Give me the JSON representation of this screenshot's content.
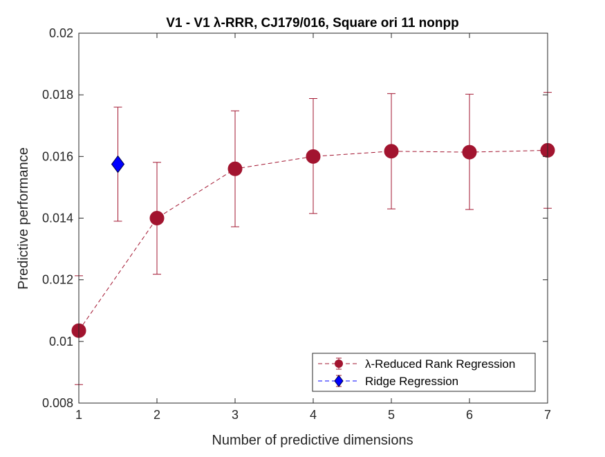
{
  "chart_data": {
    "type": "line",
    "title": "V1 - V1 λ-RRR, CJ179/016, Square ori 11 nonpp",
    "xlabel": "Number of predictive dimensions",
    "ylabel": "Predictive performance",
    "xlim": [
      1,
      7
    ],
    "ylim": [
      0.008,
      0.02
    ],
    "xticks": [
      1,
      2,
      3,
      4,
      5,
      6,
      7
    ],
    "xtick_labels": [
      "1",
      "2",
      "3",
      "4",
      "5",
      "6",
      "7"
    ],
    "yticks": [
      0.008,
      0.01,
      0.012,
      0.014,
      0.016,
      0.018,
      0.02
    ],
    "ytick_labels": [
      "0.008",
      "0.01",
      "0.012",
      "0.014",
      "0.016",
      "0.018",
      "0.02"
    ],
    "grid": false,
    "legend_position": "bottom-right",
    "series": [
      {
        "name": "λ-Reduced Rank Regression",
        "color": "#A2142F",
        "marker": "circle",
        "line_style": "dashed",
        "x": [
          1,
          2,
          3,
          4,
          5,
          6,
          7
        ],
        "y": [
          0.01035,
          0.014,
          0.0156,
          0.016,
          0.01617,
          0.01614,
          0.0162
        ],
        "err_lower": [
          0.0086,
          0.01218,
          0.01372,
          0.01415,
          0.0143,
          0.01428,
          0.01432
        ],
        "err_upper": [
          0.01213,
          0.01581,
          0.01748,
          0.01788,
          0.01804,
          0.01802,
          0.01808
        ]
      },
      {
        "name": "Ridge Regression",
        "color": "#0000FF",
        "error_color": "#A2142F",
        "marker": "diamond",
        "x": [
          1.5
        ],
        "y": [
          0.01575
        ],
        "err_lower": [
          0.0139
        ],
        "err_upper": [
          0.0176
        ]
      }
    ]
  }
}
